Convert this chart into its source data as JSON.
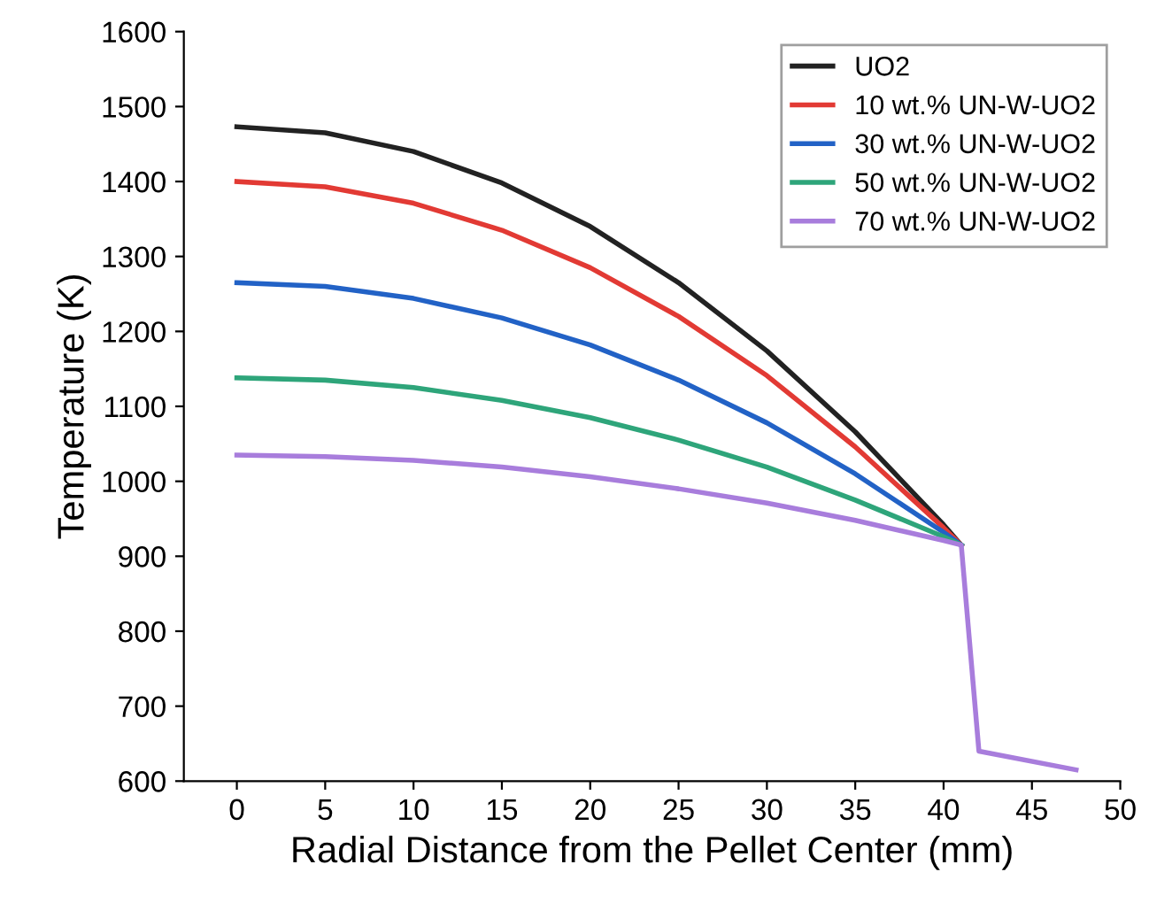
{
  "chart_data": {
    "type": "line",
    "xlabel": "Radial Distance from the Pellet Center (mm)",
    "ylabel": "Temperature (K)",
    "xlim": [
      -3,
      50
    ],
    "xticks": [
      0,
      5,
      10,
      15,
      20,
      25,
      30,
      35,
      40,
      45,
      50
    ],
    "ylim": [
      600,
      1600
    ],
    "yticks": [
      600,
      700,
      800,
      900,
      1000,
      1100,
      1200,
      1300,
      1400,
      1500,
      1600
    ],
    "x": [
      0,
      5,
      10,
      15,
      20,
      25,
      30,
      35,
      40,
      41,
      42,
      47.5
    ],
    "series": [
      {
        "name": "UO2",
        "color": "#222222",
        "values": [
          1473,
          1465,
          1440,
          1398,
          1340,
          1265,
          1174,
          1066,
          942,
          915,
          null,
          null
        ]
      },
      {
        "name": "10 wt.% UN-W-UO2",
        "color": "#e23a34",
        "values": [
          1400,
          1393,
          1371,
          1335,
          1285,
          1220,
          1141,
          1046,
          938,
          915,
          null,
          null
        ]
      },
      {
        "name": "30 wt.% UN-W-UO2",
        "color": "#2262c6",
        "values": [
          1265,
          1260,
          1244,
          1218,
          1182,
          1135,
          1078,
          1010,
          932,
          915,
          null,
          null
        ]
      },
      {
        "name": "50 wt.% UN-W-UO2",
        "color": "#2ea57a",
        "values": [
          1138,
          1135,
          1125,
          1108,
          1085,
          1055,
          1019,
          975,
          926,
          915,
          null,
          null
        ]
      },
      {
        "name": "70 wt.% UN-W-UO2",
        "color": "#a87ddc",
        "values": [
          1035,
          1033,
          1028,
          1019,
          1006,
          990,
          971,
          948,
          921,
          915,
          640,
          615
        ]
      }
    ],
    "legend": "top right",
    "grid": false,
    "marker": "none",
    "line_style": "solid"
  }
}
